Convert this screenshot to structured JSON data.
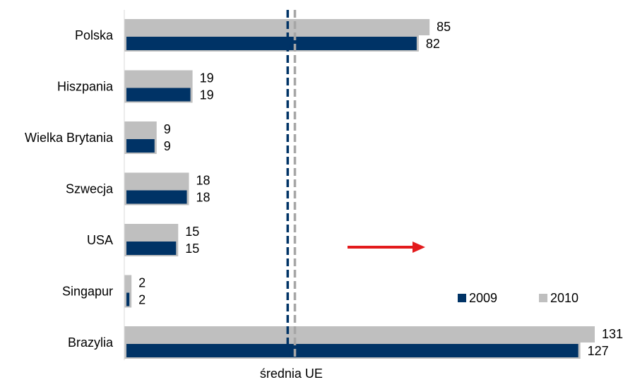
{
  "chart_data": {
    "type": "bar",
    "orientation": "horizontal",
    "categories": [
      "Polska",
      "Hiszpania",
      "Wielka Brytania",
      "Szwecja",
      "USA",
      "Singapur",
      "Brazylia"
    ],
    "series": [
      {
        "name": "2009",
        "values": [
          82,
          19,
          9,
          18,
          15,
          2,
          127
        ],
        "color": "#003366"
      },
      {
        "name": "2010",
        "values": [
          85,
          19,
          9,
          18,
          15,
          2,
          131
        ],
        "color": "#BFBFBF"
      }
    ],
    "xlim": [
      0,
      135
    ],
    "reference_lines": [
      {
        "value": 45.5,
        "color": "#003366",
        "style": "dashed"
      },
      {
        "value": 47.5,
        "color": "#A6A6A6",
        "style": "dashed"
      }
    ],
    "reference_label": "średnia UE",
    "annotation_arrow_color": "#E31A1C",
    "legend_position": "lower-right",
    "grid": false,
    "title": "",
    "xlabel": "",
    "ylabel": ""
  }
}
